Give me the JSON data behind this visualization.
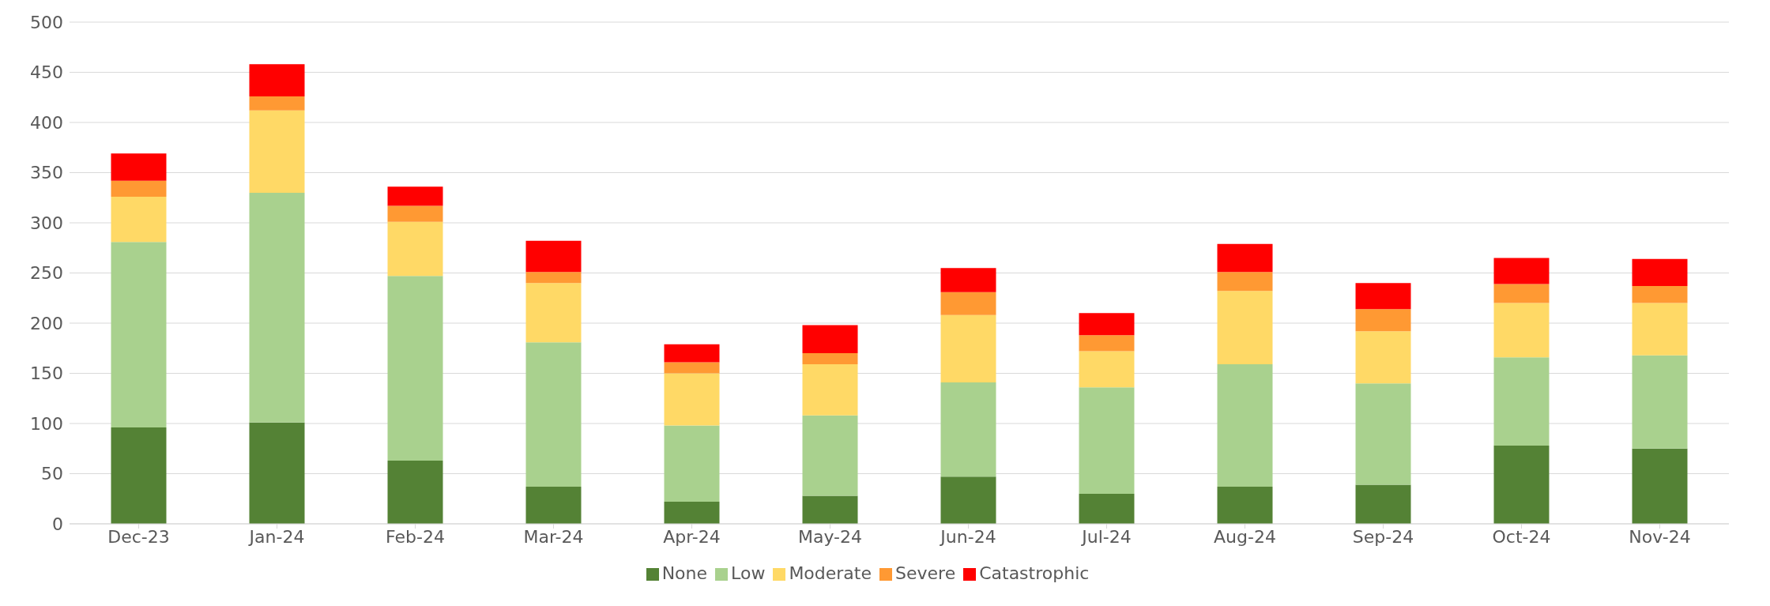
{
  "chart_data": {
    "type": "bar",
    "stacked": true,
    "categories": [
      "Dec-23",
      "Jan-24",
      "Feb-24",
      "Mar-24",
      "Apr-24",
      "May-24",
      "Jun-24",
      "Jul-24",
      "Aug-24",
      "Sep-24",
      "Oct-24",
      "Nov-24"
    ],
    "series": [
      {
        "name": "None",
        "color": "#548235",
        "values": [
          96,
          101,
          63,
          37,
          22,
          28,
          47,
          30,
          37,
          39,
          78,
          75
        ]
      },
      {
        "name": "Low",
        "color": "#a9d18e",
        "values": [
          185,
          229,
          184,
          144,
          76,
          80,
          94,
          106,
          122,
          101,
          88,
          93
        ]
      },
      {
        "name": "Moderate",
        "color": "#ffd966",
        "values": [
          45,
          82,
          54,
          59,
          52,
          51,
          67,
          36,
          73,
          52,
          54,
          52
        ]
      },
      {
        "name": "Severe",
        "color": "#ff9933",
        "values": [
          16,
          14,
          16,
          11,
          11,
          11,
          23,
          16,
          19,
          22,
          19,
          17
        ]
      },
      {
        "name": "Catastrophic",
        "color": "#ff0000",
        "values": [
          27,
          32,
          19,
          31,
          18,
          28,
          24,
          22,
          28,
          26,
          26,
          27
        ]
      }
    ],
    "ylim": [
      0,
      500
    ],
    "yticks": [
      0,
      50,
      100,
      150,
      200,
      250,
      300,
      350,
      400,
      450,
      500
    ],
    "grid": "y",
    "legend": "bottom"
  }
}
